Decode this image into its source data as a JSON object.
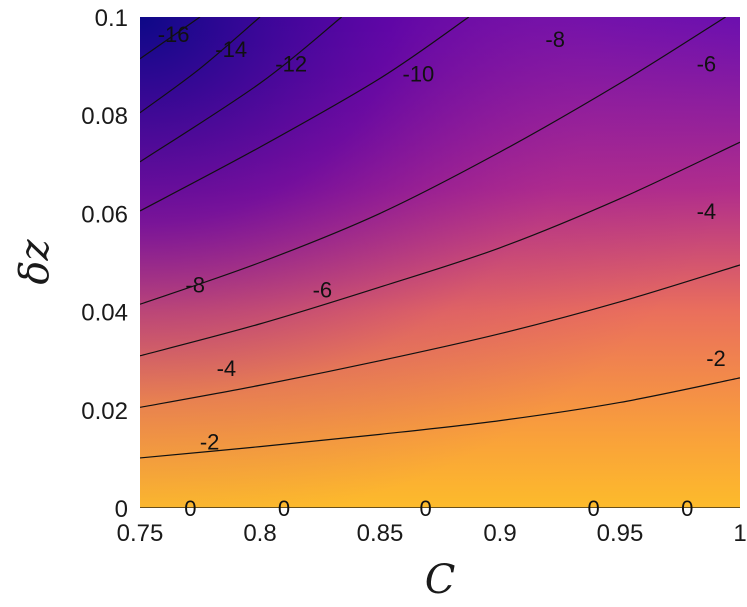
{
  "chart_data": {
    "type": "contour",
    "title": "",
    "xlabel": "C",
    "ylabel": "δz",
    "xlim": [
      0.75,
      1.0
    ],
    "ylim": [
      0,
      0.1
    ],
    "x_ticks": [
      {
        "value": 0.75,
        "label": "0.75"
      },
      {
        "value": 0.8,
        "label": "0.8"
      },
      {
        "value": 0.85,
        "label": "0.85"
      },
      {
        "value": 0.9,
        "label": "0.9"
      },
      {
        "value": 0.95,
        "label": "0.95"
      },
      {
        "value": 1.0,
        "label": "1"
      }
    ],
    "y_ticks": [
      {
        "value": 0,
        "label": "0"
      },
      {
        "value": 0.02,
        "label": "0.02"
      },
      {
        "value": 0.04,
        "label": "0.04"
      },
      {
        "value": 0.06,
        "label": "0.06"
      },
      {
        "value": 0.08,
        "label": "0.08"
      },
      {
        "value": 0.1,
        "label": "0.1"
      }
    ],
    "colormap": [
      "#0d0887",
      "#7e03a8",
      "#cc4778",
      "#f89540",
      "#fdb42f"
    ],
    "grid": false,
    "contours": [
      {
        "level": -16,
        "label": "-16",
        "points": [
          [
            0.75,
            0.0915
          ],
          [
            0.775,
            0.1
          ]
        ],
        "label_at": [
          0.764,
          0.0965
        ]
      },
      {
        "level": -14,
        "label": "-14",
        "points": [
          [
            0.75,
            0.0805
          ],
          [
            0.775,
            0.0895
          ],
          [
            0.8,
            0.1
          ]
        ],
        "label_at": [
          0.788,
          0.0935
        ]
      },
      {
        "level": -12,
        "label": "-12",
        "points": [
          [
            0.75,
            0.0705
          ],
          [
            0.8,
            0.0865
          ],
          [
            0.834,
            0.1
          ]
        ],
        "label_at": [
          0.813,
          0.0905
        ]
      },
      {
        "level": -10,
        "label": "-10",
        "points": [
          [
            0.75,
            0.0605
          ],
          [
            0.8,
            0.0735
          ],
          [
            0.85,
            0.0875
          ],
          [
            0.887,
            0.1
          ]
        ],
        "label_at": [
          0.866,
          0.0885
        ]
      },
      {
        "level": -8,
        "label": "-8",
        "points": [
          [
            0.75,
            0.0415
          ],
          [
            0.8,
            0.05
          ],
          [
            0.85,
            0.06
          ],
          [
            0.9,
            0.0725
          ],
          [
            0.95,
            0.0865
          ],
          [
            0.994,
            0.1
          ]
        ],
        "label_at": [
          0.773,
          0.0455
        ]
      },
      {
        "level": -8,
        "label": "-8",
        "points": [],
        "label_at": [
          0.923,
          0.0955
        ]
      },
      {
        "level": -6,
        "label": "-6",
        "points": [
          [
            0.75,
            0.031
          ],
          [
            0.8,
            0.0375
          ],
          [
            0.85,
            0.045
          ],
          [
            0.9,
            0.053
          ],
          [
            0.95,
            0.063
          ],
          [
            1.0,
            0.0745
          ]
        ],
        "label_at": [
          0.826,
          0.0445
        ]
      },
      {
        "level": -6,
        "label": "-6",
        "points": [],
        "label_at": [
          0.986,
          0.0905
        ]
      },
      {
        "level": -4,
        "label": "-4",
        "points": [
          [
            0.75,
            0.0205
          ],
          [
            0.8,
            0.025
          ],
          [
            0.85,
            0.03
          ],
          [
            0.9,
            0.0355
          ],
          [
            0.95,
            0.042
          ],
          [
            1.0,
            0.0495
          ]
        ],
        "label_at": [
          0.786,
          0.0285
        ]
      },
      {
        "level": -4,
        "label": "-4",
        "points": [],
        "label_at": [
          0.986,
          0.0605
        ]
      },
      {
        "level": -2,
        "label": "-2",
        "points": [
          [
            0.75,
            0.0102
          ],
          [
            0.8,
            0.0125
          ],
          [
            0.85,
            0.015
          ],
          [
            0.9,
            0.0178
          ],
          [
            0.95,
            0.0215
          ],
          [
            1.0,
            0.0265
          ]
        ],
        "label_at": [
          0.779,
          0.0135
        ]
      },
      {
        "level": -2,
        "label": "-2",
        "points": [],
        "label_at": [
          0.99,
          0.0305
        ]
      },
      {
        "level": 0,
        "label": "0",
        "points": [
          [
            0.75,
            0.0
          ],
          [
            1.0,
            0.0
          ]
        ],
        "label_at": [
          0.771,
          0.0
        ]
      },
      {
        "level": 0,
        "label": "0",
        "points": [],
        "label_at": [
          0.81,
          0.0
        ]
      },
      {
        "level": 0,
        "label": "0",
        "points": [],
        "label_at": [
          0.869,
          0.0
        ]
      },
      {
        "level": 0,
        "label": "0",
        "points": [],
        "label_at": [
          0.939,
          0.0
        ]
      },
      {
        "level": 0,
        "label": "0",
        "points": [],
        "label_at": [
          0.978,
          0.0
        ]
      }
    ]
  }
}
